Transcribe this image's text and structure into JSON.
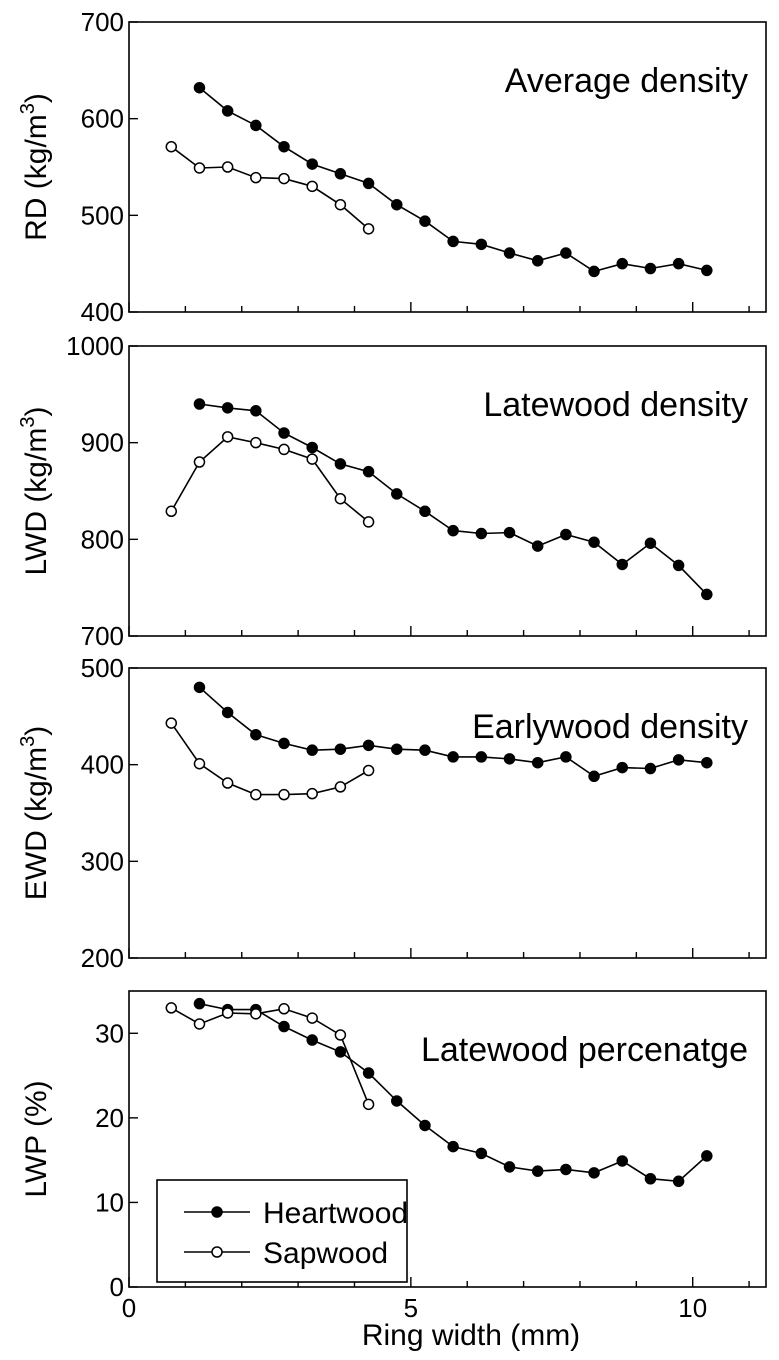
{
  "chart_data": {
    "type": "line",
    "xlabel": "Ring width (mm)",
    "xlim": [
      0,
      11.3
    ],
    "xticks": [
      0,
      5,
      10
    ],
    "grid": false,
    "legend": {
      "placement": "bottom-left of bottom panel",
      "entries": [
        {
          "name": "Heartwood",
          "marker": "filled-circle"
        },
        {
          "name": "Sapwood",
          "marker": "open-circle"
        }
      ]
    },
    "panels": [
      {
        "title": "Average density",
        "ylabel": "RD (kg/m",
        "ylabel_sup": "3",
        "ylabel_end": ")",
        "ylim": [
          400,
          700
        ],
        "yticks": [
          400,
          500,
          600,
          700
        ],
        "series": [
          {
            "name": "Heartwood",
            "x": [
              1.25,
              1.75,
              2.25,
              2.75,
              3.25,
              3.75,
              4.25,
              4.75,
              5.25,
              5.75,
              6.25,
              6.75,
              7.25,
              7.75,
              8.25,
              8.75,
              9.25,
              9.75,
              10.25
            ],
            "y": [
              632,
              608,
              593,
              571,
              553,
              543,
              533,
              511,
              494,
              473,
              470,
              461,
              453,
              461,
              442,
              450,
              445,
              450,
              443
            ]
          },
          {
            "name": "Sapwood",
            "x": [
              0.75,
              1.25,
              1.75,
              2.25,
              2.75,
              3.25,
              3.75,
              4.25
            ],
            "y": [
              571,
              549,
              550,
              539,
              538,
              530,
              511,
              486
            ]
          }
        ]
      },
      {
        "title": "Latewood density",
        "ylabel": "LWD (kg/m",
        "ylabel_sup": "3",
        "ylabel_end": ")",
        "ylim": [
          700,
          1000
        ],
        "yticks": [
          700,
          800,
          900,
          1000
        ],
        "series": [
          {
            "name": "Heartwood",
            "x": [
              1.25,
              1.75,
              2.25,
              2.75,
              3.25,
              3.75,
              4.25,
              4.75,
              5.25,
              5.75,
              6.25,
              6.75,
              7.25,
              7.75,
              8.25,
              8.75,
              9.25,
              9.75,
              10.25
            ],
            "y": [
              940,
              936,
              933,
              910,
              895,
              878,
              870,
              847,
              829,
              809,
              806,
              807,
              793,
              805,
              797,
              774,
              796,
              773,
              743
            ]
          },
          {
            "name": "Sapwood",
            "x": [
              0.75,
              1.25,
              1.75,
              2.25,
              2.75,
              3.25,
              3.75,
              4.25
            ],
            "y": [
              829,
              880,
              906,
              900,
              893,
              883,
              842,
              818
            ]
          }
        ]
      },
      {
        "title": "Earlywood density",
        "ylabel": "EWD (kg/m",
        "ylabel_sup": "3",
        "ylabel_end": ")",
        "ylim": [
          200,
          500
        ],
        "yticks": [
          200,
          300,
          400,
          500
        ],
        "series": [
          {
            "name": "Heartwood",
            "x": [
              1.25,
              1.75,
              2.25,
              2.75,
              3.25,
              3.75,
              4.25,
              4.75,
              5.25,
              5.75,
              6.25,
              6.75,
              7.25,
              7.75,
              8.25,
              8.75,
              9.25,
              9.75,
              10.25
            ],
            "y": [
              480,
              454,
              431,
              422,
              415,
              416,
              420,
              416,
              415,
              408,
              408,
              406,
              402,
              408,
              388,
              397,
              396,
              405,
              402
            ]
          },
          {
            "name": "Sapwood",
            "x": [
              0.75,
              1.25,
              1.75,
              2.25,
              2.75,
              3.25,
              3.75,
              4.25
            ],
            "y": [
              443,
              401,
              381,
              369,
              369,
              370,
              377,
              394
            ]
          }
        ]
      },
      {
        "title": "Latewood percenatge",
        "ylabel": "LWP (%)",
        "ylabel_sup": "",
        "ylabel_end": "",
        "ylim": [
          0,
          35
        ],
        "yticks": [
          0,
          10,
          20,
          30
        ],
        "series": [
          {
            "name": "Heartwood",
            "x": [
              1.25,
              1.75,
              2.25,
              2.75,
              3.25,
              3.75,
              4.25,
              4.75,
              5.25,
              5.75,
              6.25,
              6.75,
              7.25,
              7.75,
              8.25,
              8.75,
              9.25,
              9.75,
              10.25
            ],
            "y": [
              33.5,
              32.8,
              32.8,
              30.8,
              29.2,
              27.8,
              25.3,
              22.0,
              19.1,
              16.6,
              15.8,
              14.2,
              13.7,
              13.9,
              13.5,
              14.9,
              12.8,
              12.5,
              15.5
            ]
          },
          {
            "name": "Sapwood",
            "x": [
              0.75,
              1.25,
              1.75,
              2.25,
              2.75,
              3.25,
              3.75,
              4.25
            ],
            "y": [
              33.0,
              31.1,
              32.4,
              32.3,
              32.9,
              31.8,
              29.8,
              21.6
            ]
          }
        ]
      }
    ]
  }
}
